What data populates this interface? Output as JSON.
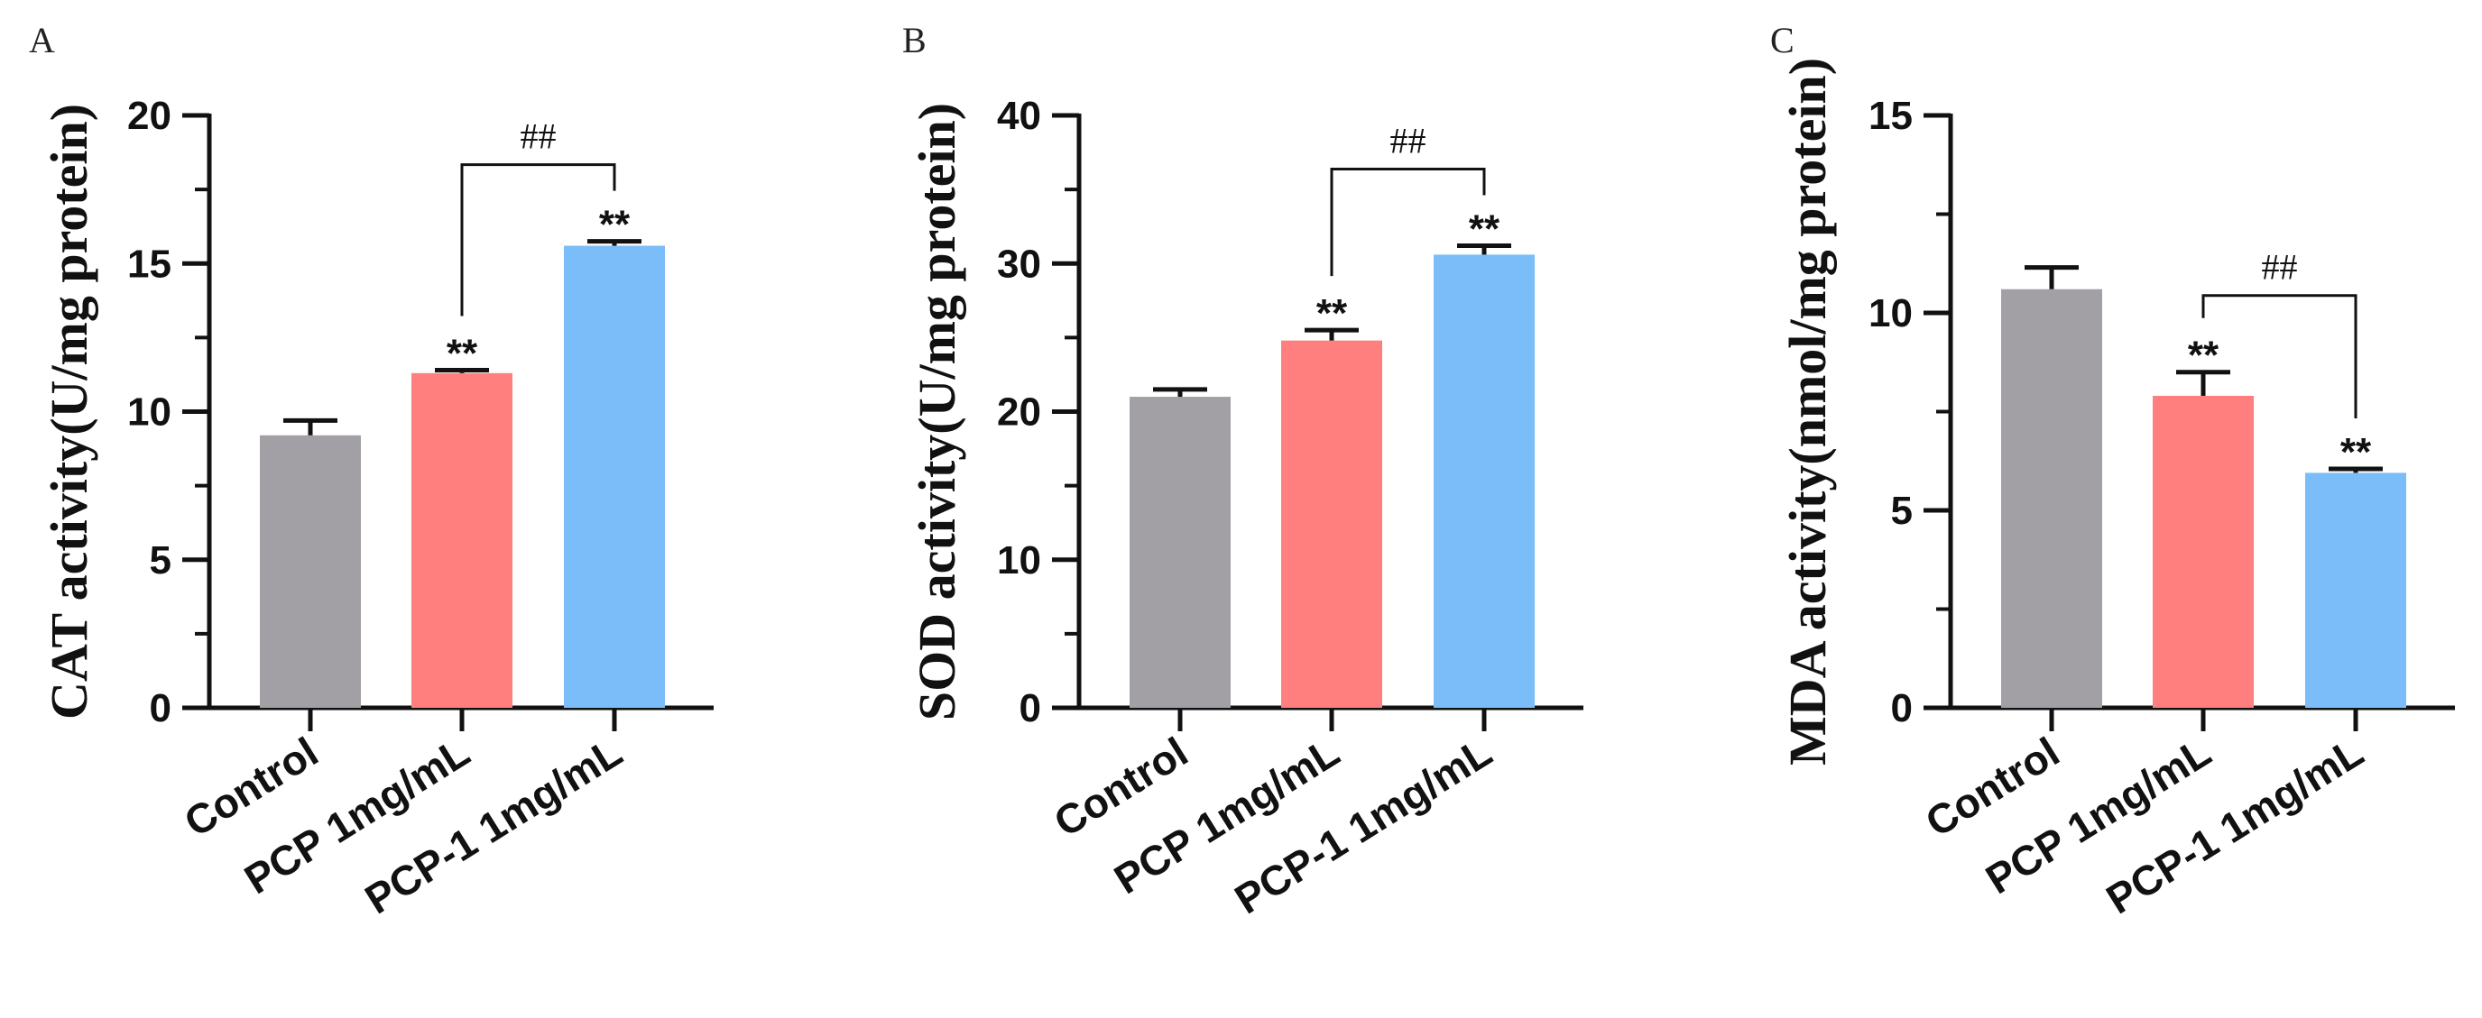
{
  "chart_data": [
    {
      "type": "bar",
      "panel_label": "A",
      "ylabel": "CAT activity(U/mg protein)",
      "ylim": [
        0,
        20
      ],
      "yticks": [
        0,
        5,
        10,
        15,
        20
      ],
      "categories": [
        "Control",
        "PCP  1mg/mL",
        "PCP-1 1mg/mL"
      ],
      "values": [
        9.2,
        11.3,
        15.6
      ],
      "errors": [
        0.5,
        0.1,
        0.15
      ],
      "colors": [
        "#a2a0a4",
        "#ff7f7f",
        "#7bbdf8"
      ],
      "markers": [
        "",
        "**",
        "**"
      ],
      "comparison": {
        "from": 1,
        "to": 2,
        "label": "##"
      }
    },
    {
      "type": "bar",
      "panel_label": "B",
      "ylabel": "SOD activity(U/mg protein)",
      "ylim": [
        0,
        40
      ],
      "yticks": [
        0,
        10,
        20,
        30,
        40
      ],
      "categories": [
        "Control",
        "PCP  1mg/mL",
        "PCP-1 1mg/mL"
      ],
      "values": [
        21.0,
        24.8,
        30.6
      ],
      "errors": [
        0.5,
        0.7,
        0.6
      ],
      "colors": [
        "#a2a0a4",
        "#ff7f7f",
        "#7bbdf8"
      ],
      "markers": [
        "",
        "**",
        "**"
      ],
      "comparison": {
        "from": 1,
        "to": 2,
        "label": "##"
      }
    },
    {
      "type": "bar",
      "panel_label": "C",
      "ylabel": "MDA activity(nmol/mg protein)",
      "ylim": [
        0,
        15
      ],
      "yticks": [
        0,
        5,
        10,
        15
      ],
      "categories": [
        "Control",
        "PCP  1mg/mL",
        "PCP-1 1mg/mL"
      ],
      "values": [
        10.6,
        7.9,
        5.95
      ],
      "errors": [
        0.55,
        0.6,
        0.1
      ],
      "colors": [
        "#a2a0a4",
        "#ff7f7f",
        "#7bbdf8"
      ],
      "markers": [
        "",
        "**",
        "**"
      ],
      "comparison": {
        "from": 1,
        "to": 2,
        "label": "##"
      }
    }
  ]
}
